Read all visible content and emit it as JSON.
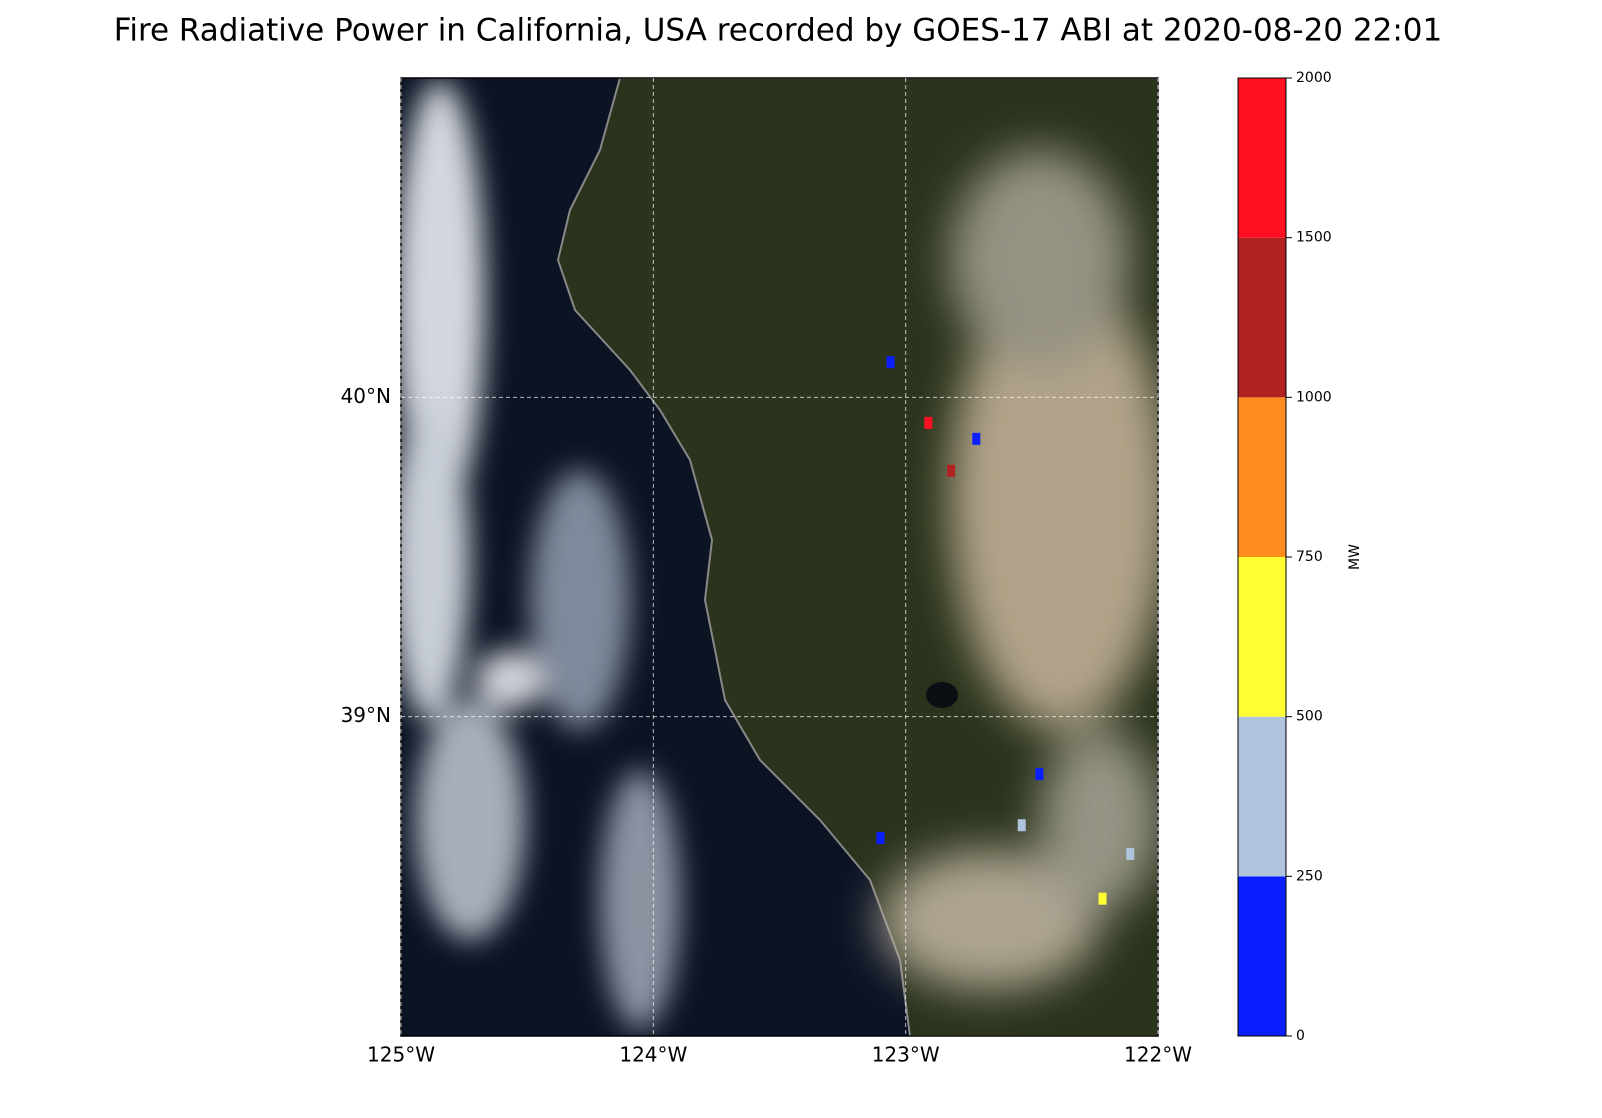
{
  "title": "Fire Radiative Power in California, USA recorded by GOES-17 ABI at 2020-08-20 22:01",
  "map": {
    "xlim": [
      -125,
      -122
    ],
    "ylim": [
      38,
      41
    ],
    "xticks": [
      {
        "value": -125,
        "label": "125°W"
      },
      {
        "value": -124,
        "label": "124°W"
      },
      {
        "value": -123,
        "label": "123°W"
      },
      {
        "value": -122,
        "label": "122°W"
      }
    ],
    "yticks": [
      {
        "value": 39,
        "label": "39°N"
      },
      {
        "value": 40,
        "label": "40°N"
      }
    ],
    "grid": true,
    "fires": [
      {
        "lon": -123.06,
        "lat": 40.11,
        "value": 100
      },
      {
        "lon": -122.91,
        "lat": 39.92,
        "value": 1800
      },
      {
        "lon": -122.72,
        "lat": 39.87,
        "value": 150
      },
      {
        "lon": -122.82,
        "lat": 39.77,
        "value": 1200
      },
      {
        "lon": -123.1,
        "lat": 38.62,
        "value": 150
      },
      {
        "lon": -122.47,
        "lat": 38.82,
        "value": 150
      },
      {
        "lon": -122.54,
        "lat": 38.66,
        "value": 300
      },
      {
        "lon": -122.11,
        "lat": 38.57,
        "value": 300
      },
      {
        "lon": -122.22,
        "lat": 38.43,
        "value": 600
      }
    ]
  },
  "colorbar": {
    "label": "MW",
    "ticks": [
      0,
      250,
      500,
      750,
      1000,
      1500,
      2000
    ],
    "colors": [
      "#0a1eff",
      "#b0c4de",
      "#ffff33",
      "#ff8c1e",
      "#b22222",
      "#ff1020"
    ]
  }
}
